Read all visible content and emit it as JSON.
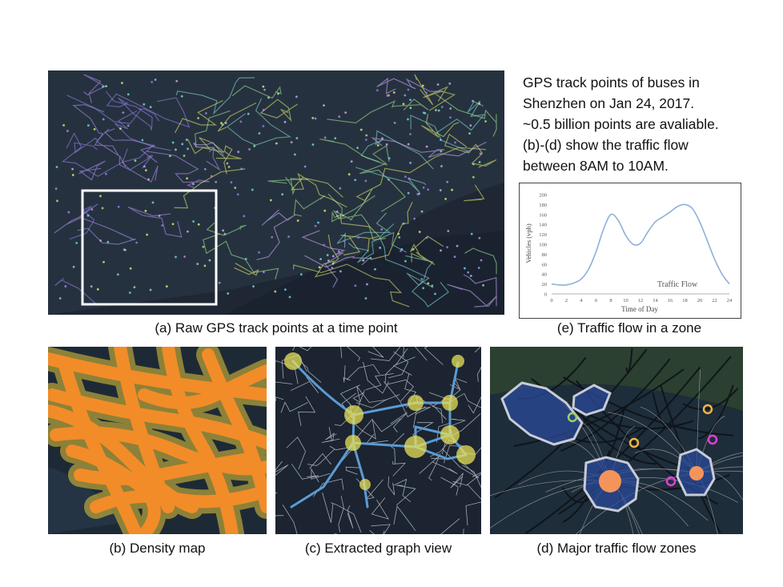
{
  "description_lines": [
    "GPS track points of buses  in",
    "Shenzhen on Jan 24, 2017.",
    "~0.5 billion points are avaliable.",
    "(b)-(d) show the traffic flow",
    "between 8AM to 10AM."
  ],
  "captions": {
    "a": "(a) Raw GPS track points at a time point",
    "b": "(b) Density map",
    "c": "(c) Extracted graph view",
    "d": "(d) Major traffic flow zones",
    "e": "(e) Traffic flow in a zone"
  },
  "colors": {
    "map_dark": "#1f2a38",
    "density": "#f28c28",
    "graph_edge": "#5b9bd5",
    "graph_node": "#e8e05a",
    "zone_fill": "#2b4a9a",
    "zone_hot": "#f5945a",
    "flow_line": "#3a6ea5"
  },
  "chart_data": {
    "type": "line",
    "title": "",
    "xlabel": "Time of Day",
    "ylabel": "Vehicles (vph)",
    "xlim": [
      0,
      24
    ],
    "ylim": [
      0,
      200
    ],
    "x_ticks": [
      0,
      2,
      4,
      6,
      8,
      10,
      12,
      14,
      16,
      18,
      20,
      22,
      24
    ],
    "y_ticks": [
      0,
      20,
      40,
      60,
      80,
      100,
      120,
      140,
      160,
      180,
      200
    ],
    "grid": false,
    "legend": "bottom-right",
    "series": [
      {
        "name": "Traffic  Flow",
        "x": [
          0,
          1,
          2,
          3,
          4,
          5,
          6,
          7,
          8,
          9,
          10,
          11,
          12,
          13,
          14,
          15,
          16,
          17,
          18,
          19,
          20,
          21,
          22,
          23,
          24
        ],
        "y": [
          20,
          18,
          18,
          22,
          30,
          50,
          85,
          130,
          160,
          148,
          118,
          100,
          102,
          125,
          145,
          155,
          165,
          176,
          180,
          172,
          145,
          108,
          70,
          40,
          20
        ]
      }
    ]
  }
}
